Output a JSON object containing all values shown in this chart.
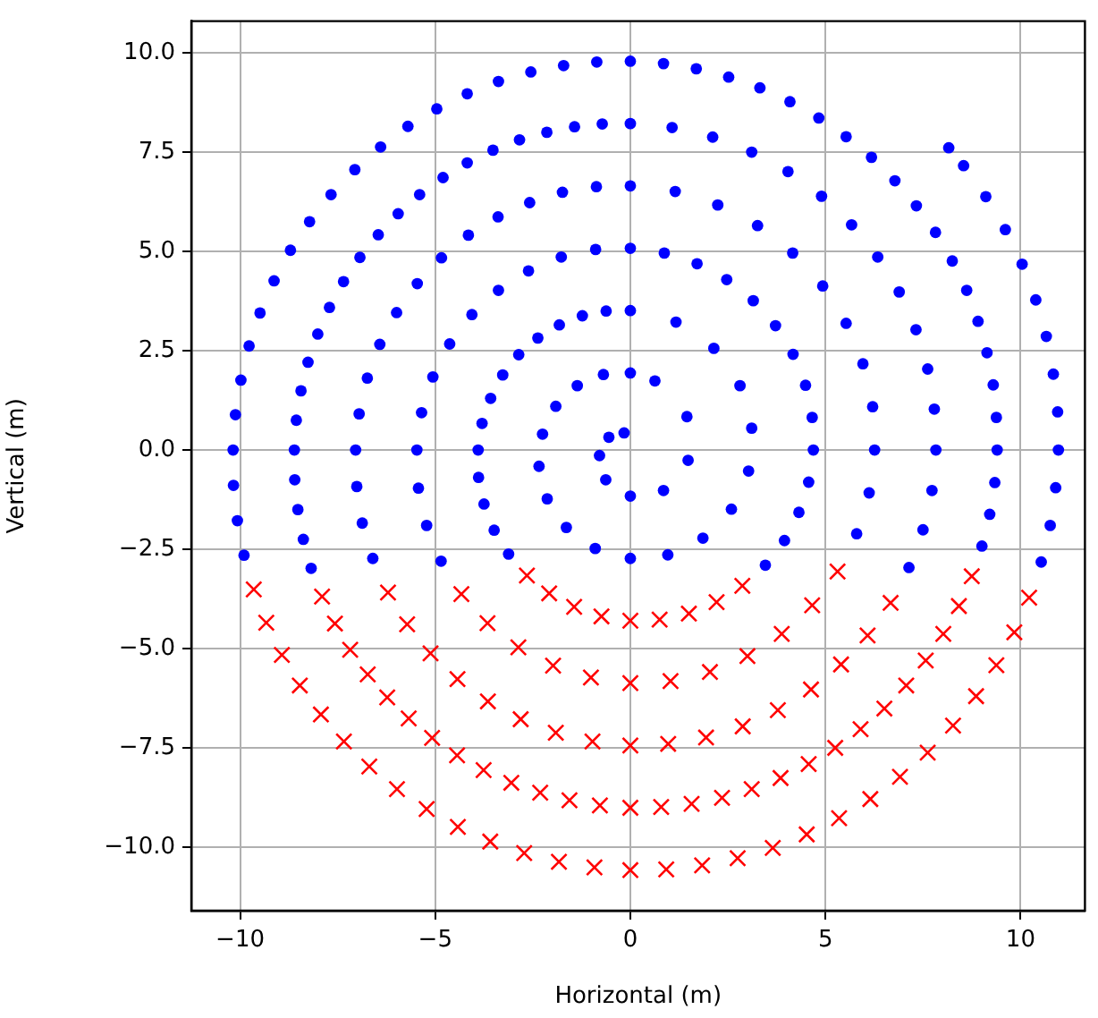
{
  "chart_data": {
    "type": "scatter",
    "xlabel": "Horizontal (m)",
    "ylabel": "Vertical (m)",
    "xlim": [
      -11.25,
      11.65
    ],
    "ylim": [
      -11.6,
      10.8
    ],
    "xticks": [
      {
        "value": -10,
        "label": "−10"
      },
      {
        "value": -5,
        "label": "−5"
      },
      0,
      5,
      10
    ],
    "yticks": [
      {
        "value": -10,
        "label": "−10.0"
      },
      {
        "value": -7.5,
        "label": "−7.5"
      },
      {
        "value": -5,
        "label": "−5.0"
      },
      {
        "value": -2.5,
        "label": "−2.5"
      },
      {
        "value": 0,
        "label": "0.0"
      },
      2.5,
      {
        "value": 5,
        "label": "5.0"
      },
      7.5,
      {
        "value": 10,
        "label": "10.0"
      }
    ],
    "grid": true,
    "series": [
      {
        "color": "#0000ff",
        "marker": "circle",
        "x": [
          -0.16,
          -0.55,
          -0.79,
          -0.63,
          0,
          0.85,
          1.48,
          1.45,
          0.63,
          0,
          -0.69,
          -1.36,
          -1.91,
          -2.25,
          -2.34,
          -2.13,
          -1.64,
          -0.9,
          0,
          0.96,
          1.86,
          2.59,
          3.03,
          3.11,
          2.81,
          2.14,
          1.17,
          0,
          -0.62,
          -1.23,
          -1.82,
          -2.37,
          -2.86,
          -3.27,
          -3.58,
          -3.8,
          -3.9,
          -3.89,
          -3.75,
          -3.49,
          -3.12,
          3.46,
          3.95,
          4.32,
          4.57,
          4.69,
          4.66,
          4.49,
          4.17,
          3.72,
          3.15,
          2.47,
          1.71,
          0.87,
          0,
          -0.89,
          -1.77,
          -2.61,
          -3.38,
          -4.06,
          -4.63,
          -5.06,
          -5.35,
          -5.47,
          -5.43,
          -5.22,
          -4.85,
          5.8,
          6.12,
          6.26,
          6.21,
          5.96,
          5.53,
          4.93,
          4.16,
          3.26,
          2.24,
          1.15,
          0,
          -0.87,
          -1.74,
          -2.58,
          -3.39,
          -4.15,
          -4.84,
          -5.46,
          -5.99,
          -6.42,
          -6.74,
          -6.95,
          -7.04,
          -7.01,
          -6.87,
          -6.6,
          7.14,
          7.5,
          7.73,
          7.83,
          7.79,
          7.62,
          7.32,
          6.89,
          6.34,
          5.67,
          4.9,
          4.04,
          3.11,
          2.11,
          1.07,
          0,
          -0.72,
          -1.43,
          -2.14,
          -2.84,
          -3.52,
          -4.18,
          -4.8,
          -5.4,
          -5.95,
          -6.46,
          -6.93,
          -7.35,
          -7.71,
          -8.01,
          -8.26,
          -8.44,
          -8.56,
          -8.61,
          -8.6,
          -8.52,
          -8.38,
          -8.18,
          9.01,
          9.21,
          9.34,
          9.4,
          9.38,
          9.3,
          9.14,
          8.91,
          8.62,
          8.25,
          7.82,
          7.33,
          6.78,
          6.18,
          5.53,
          4.83,
          4.09,
          3.32,
          2.52,
          1.69,
          0.85,
          0,
          -0.86,
          -1.71,
          -2.55,
          -3.38,
          -4.18,
          -4.96,
          -5.7,
          -6.4,
          -7.06,
          -7.67,
          -8.22,
          -8.71,
          -9.13,
          -9.49,
          -9.77,
          -9.98,
          -10.12,
          -10.18,
          -10.17,
          -10.07,
          -9.9,
          10.53,
          10.76,
          10.9,
          10.97,
          10.95,
          10.84,
          10.66,
          10.39,
          10.04,
          9.61,
          9.11,
          8.54,
          8.16
        ],
        "values": [
          0.43,
          0.32,
          -0.14,
          -0.75,
          -1.16,
          -1.02,
          -0.26,
          0.84,
          1.74,
          1.94,
          1.9,
          1.62,
          1.1,
          0.4,
          -0.41,
          -1.23,
          -1.95,
          -2.48,
          -2.73,
          -2.64,
          -2.22,
          -1.49,
          -0.53,
          0.55,
          1.62,
          2.56,
          3.22,
          3.51,
          3.5,
          3.38,
          3.15,
          2.82,
          2.4,
          1.89,
          1.3,
          0.67,
          0,
          -0.69,
          -1.36,
          -2.02,
          -2.62,
          -2.9,
          -2.28,
          -1.57,
          -0.81,
          0,
          0.82,
          1.63,
          2.41,
          3.13,
          3.76,
          4.29,
          4.69,
          4.96,
          5.08,
          5.05,
          4.86,
          4.51,
          4.02,
          3.41,
          2.67,
          1.84,
          0.94,
          0,
          -0.96,
          -1.9,
          -2.8,
          -2.11,
          -1.08,
          0,
          1.09,
          2.17,
          3.19,
          4.13,
          4.96,
          5.65,
          6.17,
          6.51,
          6.65,
          6.63,
          6.49,
          6.23,
          5.87,
          5.41,
          4.84,
          4.19,
          3.46,
          2.66,
          1.81,
          0.91,
          0,
          -0.92,
          -1.84,
          -2.73,
          -2.96,
          -2.01,
          -1.02,
          0,
          1.03,
          2.04,
          3.03,
          3.98,
          4.86,
          5.67,
          6.39,
          7.01,
          7.5,
          7.88,
          8.12,
          8.22,
          8.21,
          8.14,
          8.0,
          7.81,
          7.55,
          7.23,
          6.86,
          6.43,
          5.95,
          5.42,
          4.85,
          4.24,
          3.59,
          2.92,
          2.21,
          1.49,
          0.75,
          0,
          -0.75,
          -1.5,
          -2.25,
          -2.98,
          -2.42,
          -1.62,
          -0.82,
          0,
          0.82,
          1.64,
          2.45,
          3.24,
          4.02,
          4.76,
          5.48,
          6.15,
          6.78,
          7.37,
          7.89,
          8.36,
          8.77,
          9.12,
          9.39,
          9.6,
          9.73,
          9.79,
          9.77,
          9.68,
          9.52,
          9.28,
          8.97,
          8.59,
          8.15,
          7.63,
          7.06,
          6.43,
          5.75,
          5.03,
          4.26,
          3.45,
          2.62,
          1.76,
          0.89,
          0,
          -0.89,
          -1.78,
          -2.65,
          -2.82,
          -1.9,
          -0.95,
          0,
          0.96,
          1.91,
          2.86,
          3.78,
          4.68,
          5.55,
          6.38,
          7.16,
          7.61
        ]
      },
      {
        "color": "#ff0000",
        "marker": "cross",
        "x": [
          -2.65,
          -2.08,
          -1.44,
          -0.74,
          0,
          0.75,
          1.5,
          2.21,
          2.87,
          -4.33,
          -3.66,
          -2.87,
          -1.98,
          -1.01,
          0,
          1.03,
          2.04,
          3.0,
          3.88,
          4.66,
          5.31,
          -6.21,
          -5.72,
          -5.12,
          -4.43,
          -3.65,
          -2.81,
          -1.91,
          -0.97,
          0,
          0.97,
          1.94,
          2.88,
          3.78,
          4.63,
          5.4,
          6.08,
          6.67,
          -7.9,
          -7.57,
          -7.18,
          -6.73,
          -6.23,
          -5.68,
          -5.08,
          -4.44,
          -3.76,
          -3.05,
          -2.31,
          -1.56,
          -0.78,
          0,
          0.79,
          1.57,
          2.35,
          3.11,
          3.85,
          4.57,
          5.25,
          5.9,
          6.51,
          7.07,
          7.57,
          8.02,
          8.42,
          8.75,
          -9.65,
          -9.33,
          -8.93,
          -8.47,
          -7.93,
          -7.34,
          -6.69,
          -5.98,
          -5.22,
          -4.42,
          -3.59,
          -2.72,
          -1.83,
          -0.92,
          0,
          0.92,
          1.84,
          2.75,
          3.65,
          4.52,
          5.35,
          6.15,
          6.91,
          7.62,
          8.27,
          8.86,
          9.38,
          9.84,
          10.22
        ],
        "values": [
          -3.16,
          -3.61,
          -3.95,
          -4.19,
          -4.3,
          -4.27,
          -4.12,
          -3.83,
          -3.42,
          -3.63,
          -4.36,
          -4.97,
          -5.43,
          -5.73,
          -5.87,
          -5.82,
          -5.59,
          -5.19,
          -4.63,
          -3.91,
          -3.06,
          -3.59,
          -4.39,
          -5.12,
          -5.77,
          -6.33,
          -6.78,
          -7.12,
          -7.34,
          -7.44,
          -7.4,
          -7.24,
          -6.96,
          -6.55,
          -6.03,
          -5.4,
          -4.67,
          -3.85,
          -3.69,
          -4.37,
          -5.03,
          -5.65,
          -6.23,
          -6.76,
          -7.25,
          -7.69,
          -8.06,
          -8.38,
          -8.63,
          -8.82,
          -8.95,
          -9.01,
          -8.99,
          -8.91,
          -8.76,
          -8.54,
          -8.26,
          -7.91,
          -7.5,
          -7.03,
          -6.51,
          -5.93,
          -5.3,
          -4.63,
          -3.93,
          -3.18,
          -3.51,
          -4.35,
          -5.16,
          -5.93,
          -6.66,
          -7.34,
          -7.97,
          -8.54,
          -9.04,
          -9.49,
          -9.86,
          -10.15,
          -10.37,
          -10.51,
          -10.58,
          -10.56,
          -10.46,
          -10.28,
          -10.02,
          -9.68,
          -9.27,
          -8.79,
          -8.23,
          -7.62,
          -6.94,
          -6.2,
          -5.42,
          -4.59,
          -3.72
        ]
      }
    ]
  }
}
